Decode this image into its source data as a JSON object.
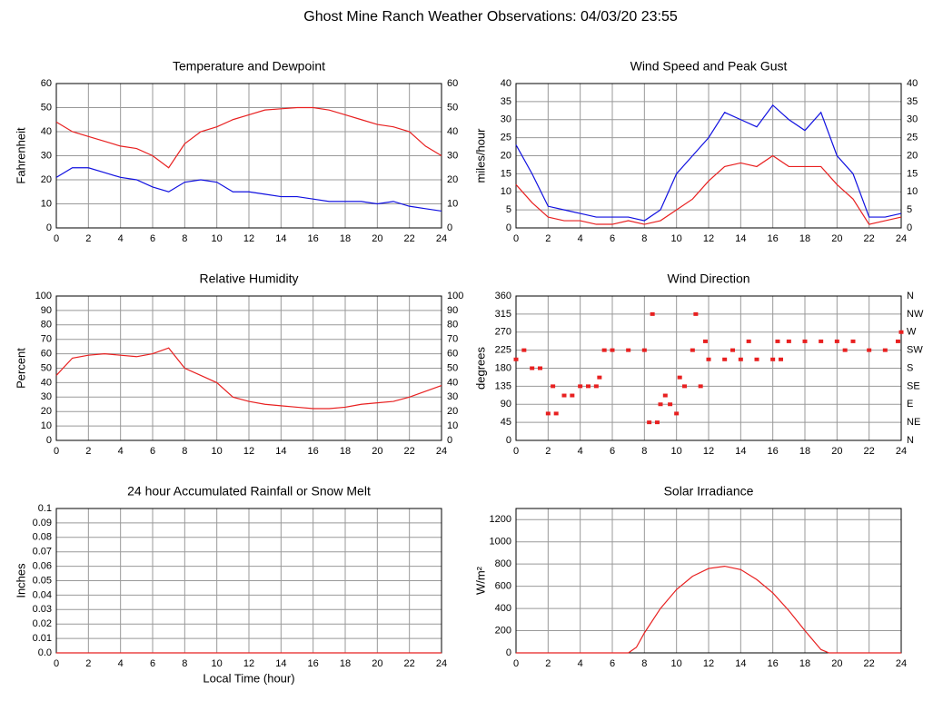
{
  "title": "Ghost Mine Ranch Weather Observations: 04/03/20 23:55",
  "chart_data": [
    {
      "type": "line",
      "title": "Temperature and Dewpoint",
      "ylabel": "Fahrenheit",
      "x": [
        0,
        1,
        2,
        3,
        4,
        5,
        6,
        7,
        8,
        9,
        10,
        11,
        12,
        13,
        14,
        15,
        16,
        17,
        18,
        19,
        20,
        21,
        22,
        23,
        24
      ],
      "series": [
        {
          "color": "#e82020",
          "values": [
            44,
            40,
            38,
            36,
            34,
            33,
            30,
            25,
            35,
            40,
            42,
            45,
            47,
            49,
            49.5,
            50,
            50,
            49,
            47,
            45,
            43,
            42,
            40,
            34,
            30
          ]
        },
        {
          "color": "#1010e0",
          "values": [
            21,
            25,
            25,
            23,
            21,
            20,
            17,
            15,
            19,
            20,
            19,
            15,
            15,
            14,
            13,
            13,
            12,
            11,
            11,
            11,
            10,
            11,
            9,
            8,
            7
          ]
        }
      ],
      "xlim": [
        0,
        24
      ],
      "xticks": [
        0,
        2,
        4,
        6,
        8,
        10,
        12,
        14,
        16,
        18,
        20,
        22,
        24
      ],
      "ylim": [
        0,
        60
      ],
      "yticks": [
        0,
        10,
        20,
        30,
        40,
        50,
        60
      ],
      "y2lim": [
        0,
        60
      ],
      "y2ticks": [
        0,
        10,
        20,
        30,
        40,
        50,
        60
      ],
      "grid": true
    },
    {
      "type": "line",
      "title": "Wind Speed and Peak Gust",
      "ylabel": "miles/hour",
      "x": [
        0,
        1,
        2,
        3,
        4,
        5,
        6,
        7,
        8,
        9,
        10,
        11,
        12,
        13,
        14,
        15,
        16,
        17,
        18,
        19,
        20,
        21,
        22,
        23,
        24
      ],
      "series": [
        {
          "color": "#1010e0",
          "values": [
            23,
            15,
            6,
            5,
            4,
            3,
            3,
            3,
            2,
            5,
            15,
            20,
            25,
            32,
            30,
            28,
            34,
            30,
            27,
            32,
            20,
            15,
            3,
            3,
            4
          ]
        },
        {
          "color": "#e82020",
          "values": [
            12,
            7,
            3,
            2,
            2,
            1,
            1,
            2,
            1,
            2,
            5,
            8,
            13,
            17,
            18,
            17,
            20,
            17,
            17,
            17,
            12,
            8,
            1,
            2,
            3
          ]
        }
      ],
      "xlim": [
        0,
        24
      ],
      "xticks": [
        0,
        2,
        4,
        6,
        8,
        10,
        12,
        14,
        16,
        18,
        20,
        22,
        24
      ],
      "ylim": [
        0,
        40
      ],
      "yticks": [
        0,
        5,
        10,
        15,
        20,
        25,
        30,
        35,
        40
      ],
      "y2lim": [
        0,
        40
      ],
      "y2ticks": [
        0,
        5,
        10,
        15,
        20,
        25,
        30,
        35,
        40
      ],
      "grid": true
    },
    {
      "type": "line",
      "title": "Relative Humidity",
      "ylabel": "Percent",
      "x": [
        0,
        1,
        2,
        3,
        4,
        5,
        6,
        7,
        8,
        9,
        10,
        11,
        12,
        13,
        14,
        15,
        16,
        17,
        18,
        19,
        20,
        21,
        22,
        23,
        24
      ],
      "series": [
        {
          "color": "#e82020",
          "values": [
            45,
            57,
            59,
            60,
            59,
            58,
            60,
            64,
            50,
            45,
            40,
            30,
            27,
            25,
            24,
            23,
            22,
            22,
            23,
            25,
            26,
            27,
            30,
            34,
            38
          ]
        }
      ],
      "xlim": [
        0,
        24
      ],
      "xticks": [
        0,
        2,
        4,
        6,
        8,
        10,
        12,
        14,
        16,
        18,
        20,
        22,
        24
      ],
      "ylim": [
        0,
        100
      ],
      "yticks": [
        0,
        10,
        20,
        30,
        40,
        50,
        60,
        70,
        80,
        90,
        100
      ],
      "y2lim": [
        0,
        100
      ],
      "y2ticks": [
        0,
        10,
        20,
        30,
        40,
        50,
        60,
        70,
        80,
        90,
        100
      ],
      "grid": true
    },
    {
      "type": "scatter",
      "title": "Wind Direction",
      "ylabel": "degrees",
      "x": [
        0,
        0.5,
        1,
        1.5,
        2,
        2.3,
        2.5,
        3,
        3.5,
        4,
        4.5,
        5,
        5.2,
        5.5,
        6,
        7,
        8,
        8.3,
        8.5,
        8.8,
        9,
        9.3,
        9.6,
        10,
        10.2,
        10.5,
        11,
        11.2,
        11.5,
        11.8,
        12,
        13,
        13.5,
        14,
        14.5,
        15,
        16,
        16.3,
        16.5,
        17,
        18,
        19,
        20,
        20.5,
        21,
        22,
        23,
        23.8,
        24
      ],
      "series": [
        {
          "color": "#e82020",
          "values": [
            202,
            225,
            180,
            180,
            67,
            135,
            67,
            112,
            112,
            135,
            135,
            135,
            157,
            225,
            225,
            225,
            225,
            45,
            315,
            45,
            90,
            112,
            90,
            67,
            157,
            135,
            225,
            315,
            135,
            247,
            202,
            202,
            225,
            202,
            247,
            202,
            202,
            247,
            202,
            247,
            247,
            247,
            247,
            225,
            247,
            225,
            225,
            247,
            270
          ]
        }
      ],
      "xlim": [
        0,
        24
      ],
      "xticks": [
        0,
        2,
        4,
        6,
        8,
        10,
        12,
        14,
        16,
        18,
        20,
        22,
        24
      ],
      "ylim": [
        0,
        360
      ],
      "yticks": [
        0,
        45,
        90,
        135,
        180,
        225,
        270,
        315,
        360
      ],
      "y2lim": [
        0,
        360
      ],
      "y2ticks": [
        {
          "value": 0,
          "label": "N"
        },
        {
          "value": 45,
          "label": "NE"
        },
        {
          "value": 90,
          "label": "E"
        },
        {
          "value": 135,
          "label": "SE"
        },
        {
          "value": 180,
          "label": "S"
        },
        {
          "value": 225,
          "label": "SW"
        },
        {
          "value": 270,
          "label": "W"
        },
        {
          "value": 315,
          "label": "NW"
        },
        {
          "value": 360,
          "label": "N"
        }
      ],
      "grid": true
    },
    {
      "type": "line",
      "title": "24 hour Accumulated Rainfall or Snow Melt",
      "ylabel": "Inches",
      "xlabel": "Local Time (hour)",
      "x": [
        0,
        24
      ],
      "series": [
        {
          "color": "#e82020",
          "values": [
            0,
            0
          ]
        }
      ],
      "xlim": [
        0,
        24
      ],
      "xticks": [
        0,
        2,
        4,
        6,
        8,
        10,
        12,
        14,
        16,
        18,
        20,
        22,
        24
      ],
      "ylim": [
        0,
        0.1
      ],
      "yticks": [
        {
          "value": 0,
          "label": "0.0"
        },
        0.01,
        0.02,
        0.03,
        0.04,
        0.05,
        0.06,
        0.07,
        0.08,
        0.09,
        0.1
      ],
      "grid": true
    },
    {
      "type": "line",
      "title": "Solar Irradiance",
      "ylabel": "W/m²",
      "x": [
        0,
        7,
        7.5,
        8,
        9,
        10,
        11,
        12,
        13,
        14,
        15,
        16,
        17,
        18,
        19,
        19.5,
        20,
        24
      ],
      "series": [
        {
          "color": "#e82020",
          "values": [
            0,
            0,
            50,
            180,
            400,
            570,
            690,
            760,
            780,
            750,
            660,
            540,
            380,
            200,
            30,
            0,
            0,
            0
          ]
        }
      ],
      "xlim": [
        0,
        24
      ],
      "xticks": [
        0,
        2,
        4,
        6,
        8,
        10,
        12,
        14,
        16,
        18,
        20,
        22,
        24
      ],
      "ylim": [
        0,
        1300
      ],
      "yticks": [
        0,
        200,
        400,
        600,
        800,
        1000,
        1200
      ],
      "grid": true
    }
  ]
}
